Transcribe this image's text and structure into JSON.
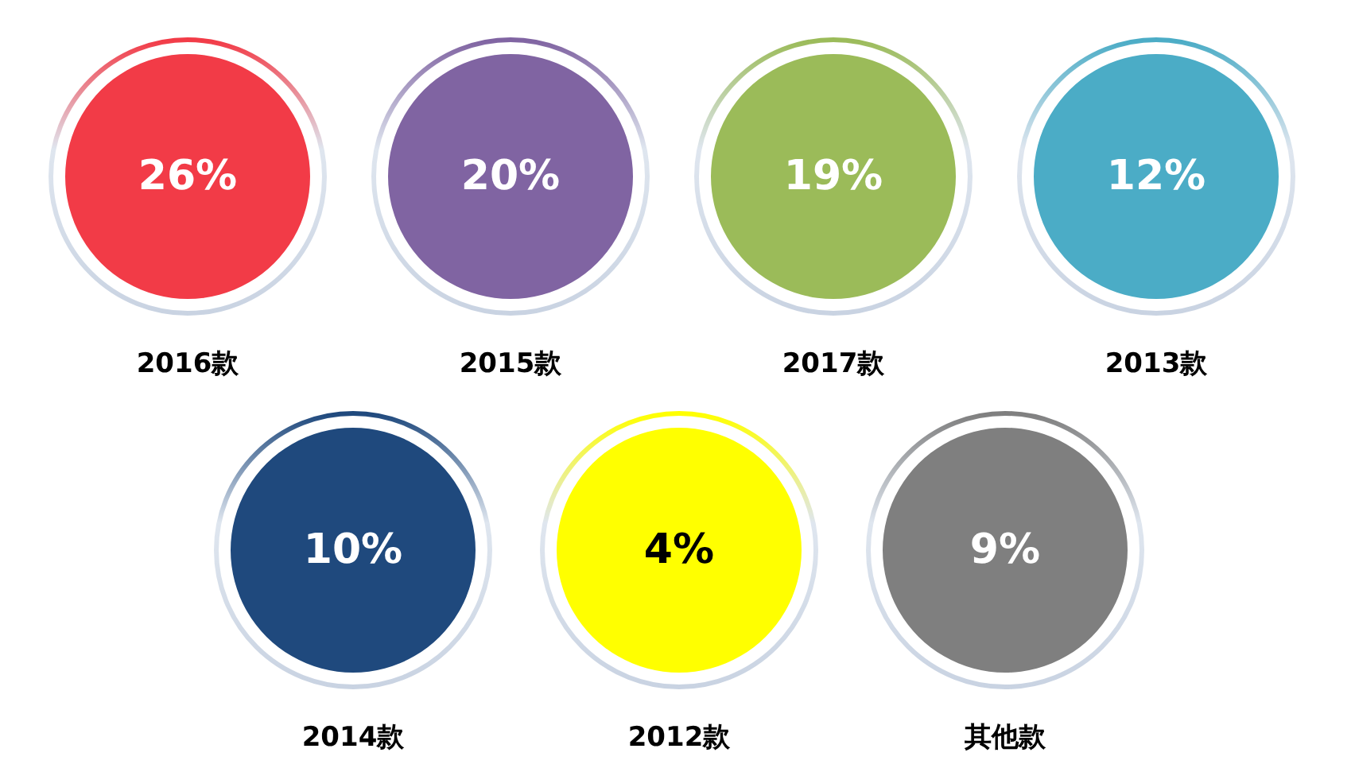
{
  "chart_data": {
    "type": "other",
    "categories": [
      "2016款",
      "2015款",
      "2017款",
      "2013款",
      "2014款",
      "2012款",
      "其他款"
    ],
    "values": [
      26,
      20,
      19,
      12,
      10,
      4,
      9
    ],
    "value_labels": [
      "26%",
      "20%",
      "19%",
      "12%",
      "10%",
      "4%",
      "9%"
    ],
    "colors": [
      "#f23b47",
      "#8064a2",
      "#9bbb59",
      "#4bacc6",
      "#1f497d",
      "#ffff00",
      "#7f7f7f"
    ]
  }
}
